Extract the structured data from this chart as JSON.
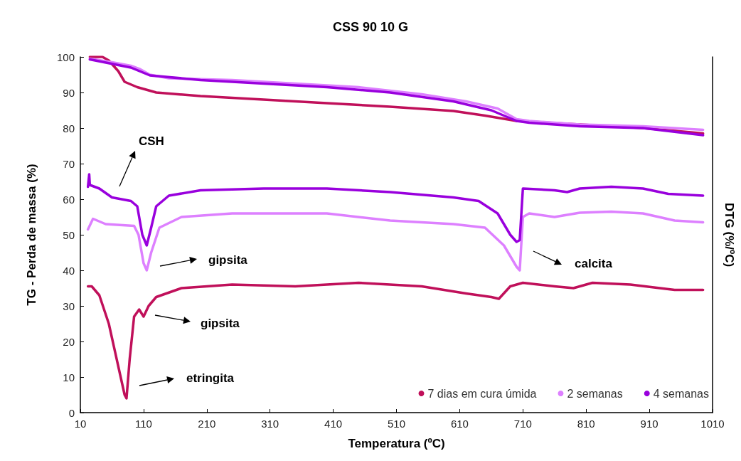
{
  "chart_data": {
    "type": "line",
    "title": "CSS 90 10 G",
    "xlabel": "Temperatura (ºC)",
    "ylabel": "TG - Perda de massa (%)",
    "y2label": "DTG (%/ºC)",
    "xlim": [
      10,
      1010
    ],
    "xticks": [
      10,
      110,
      210,
      310,
      410,
      510,
      610,
      710,
      810,
      910,
      1010
    ],
    "ylim": [
      0,
      100
    ],
    "yticks": [
      0,
      10,
      20,
      30,
      40,
      50,
      60,
      70,
      80,
      90,
      100
    ],
    "grid": false,
    "legend": "bottom right",
    "marker": "none",
    "line_style": "solid",
    "series": [
      {
        "name": "7 dias em cura úmida",
        "color": "#c0105a",
        "x": [
          25,
          45,
          55,
          70,
          80,
          100,
          130,
          200,
          300,
          400,
          500,
          600,
          650,
          700,
          800,
          900,
          995
        ],
        "values": [
          100,
          100,
          99,
          96,
          93,
          91.5,
          90,
          89,
          88,
          87,
          86,
          84.8,
          83.5,
          82,
          81,
          80,
          78.5
        ]
      },
      {
        "name": "2 semanas",
        "color": "#dd80ff",
        "x": [
          25,
          60,
          90,
          105,
          120,
          150,
          250,
          350,
          450,
          550,
          620,
          670,
          700,
          720,
          800,
          900,
          995
        ],
        "values": [
          99.5,
          98.5,
          97.5,
          96.5,
          95,
          94,
          93.5,
          92.5,
          91.5,
          89.5,
          87.5,
          85.5,
          82.5,
          82,
          81,
          80.5,
          79.5
        ]
      },
      {
        "name": "4 semanas",
        "color": "#9900dd",
        "x": [
          25,
          90,
          120,
          200,
          300,
          400,
          500,
          600,
          660,
          700,
          720,
          800,
          900,
          995
        ],
        "values": [
          99.3,
          97,
          94.8,
          93.5,
          92.5,
          91.5,
          90,
          87.5,
          85,
          82,
          81.5,
          80.5,
          80,
          78
        ]
      },
      {
        "color": "#c0105a",
        "x": [
          22,
          28,
          40,
          55,
          70,
          80,
          83,
          88,
          95,
          103,
          110,
          118,
          130,
          170,
          250,
          350,
          450,
          550,
          620,
          660,
          672,
          690,
          710,
          760,
          790,
          820,
          880,
          950,
          995
        ],
        "values": [
          35.5,
          35.5,
          33,
          25,
          13,
          5,
          4,
          15,
          27,
          29,
          27,
          30,
          32.5,
          35,
          36,
          35.5,
          36.5,
          35.5,
          33.5,
          32.5,
          32,
          35.5,
          36.5,
          35.5,
          35,
          36.5,
          36,
          34.5,
          34.5
        ]
      },
      {
        "color": "#dd80ff",
        "x": [
          22,
          30,
          50,
          95,
          102,
          110,
          115,
          122,
          135,
          170,
          250,
          400,
          500,
          600,
          650,
          680,
          700,
          705,
          710,
          720,
          760,
          800,
          850,
          900,
          950,
          995
        ],
        "values": [
          51.5,
          54.5,
          53,
          52.5,
          50,
          42,
          40,
          45,
          52,
          55,
          56,
          56,
          54,
          53,
          52,
          47,
          41,
          40,
          55,
          56,
          55,
          56.2,
          56.5,
          56,
          54,
          53.5
        ]
      },
      {
        "color": "#9900dd",
        "x": [
          22,
          24,
          25,
          40,
          60,
          90,
          100,
          108,
          115,
          122,
          130,
          150,
          200,
          300,
          400,
          500,
          600,
          640,
          670,
          690,
          700,
          705,
          710,
          760,
          780,
          800,
          850,
          900,
          940,
          995
        ],
        "values": [
          63.5,
          67,
          64,
          63,
          60.5,
          59.5,
          58,
          50,
          47,
          52,
          58,
          61,
          62.5,
          63,
          63,
          62,
          60.5,
          59.5,
          56,
          50,
          48,
          48.5,
          63,
          62.5,
          62,
          63,
          63.5,
          63,
          61.5,
          61
        ]
      }
    ],
    "annotations": [
      "CSH",
      "gipsita",
      "gipsita",
      "etringita",
      "calcita"
    ]
  }
}
